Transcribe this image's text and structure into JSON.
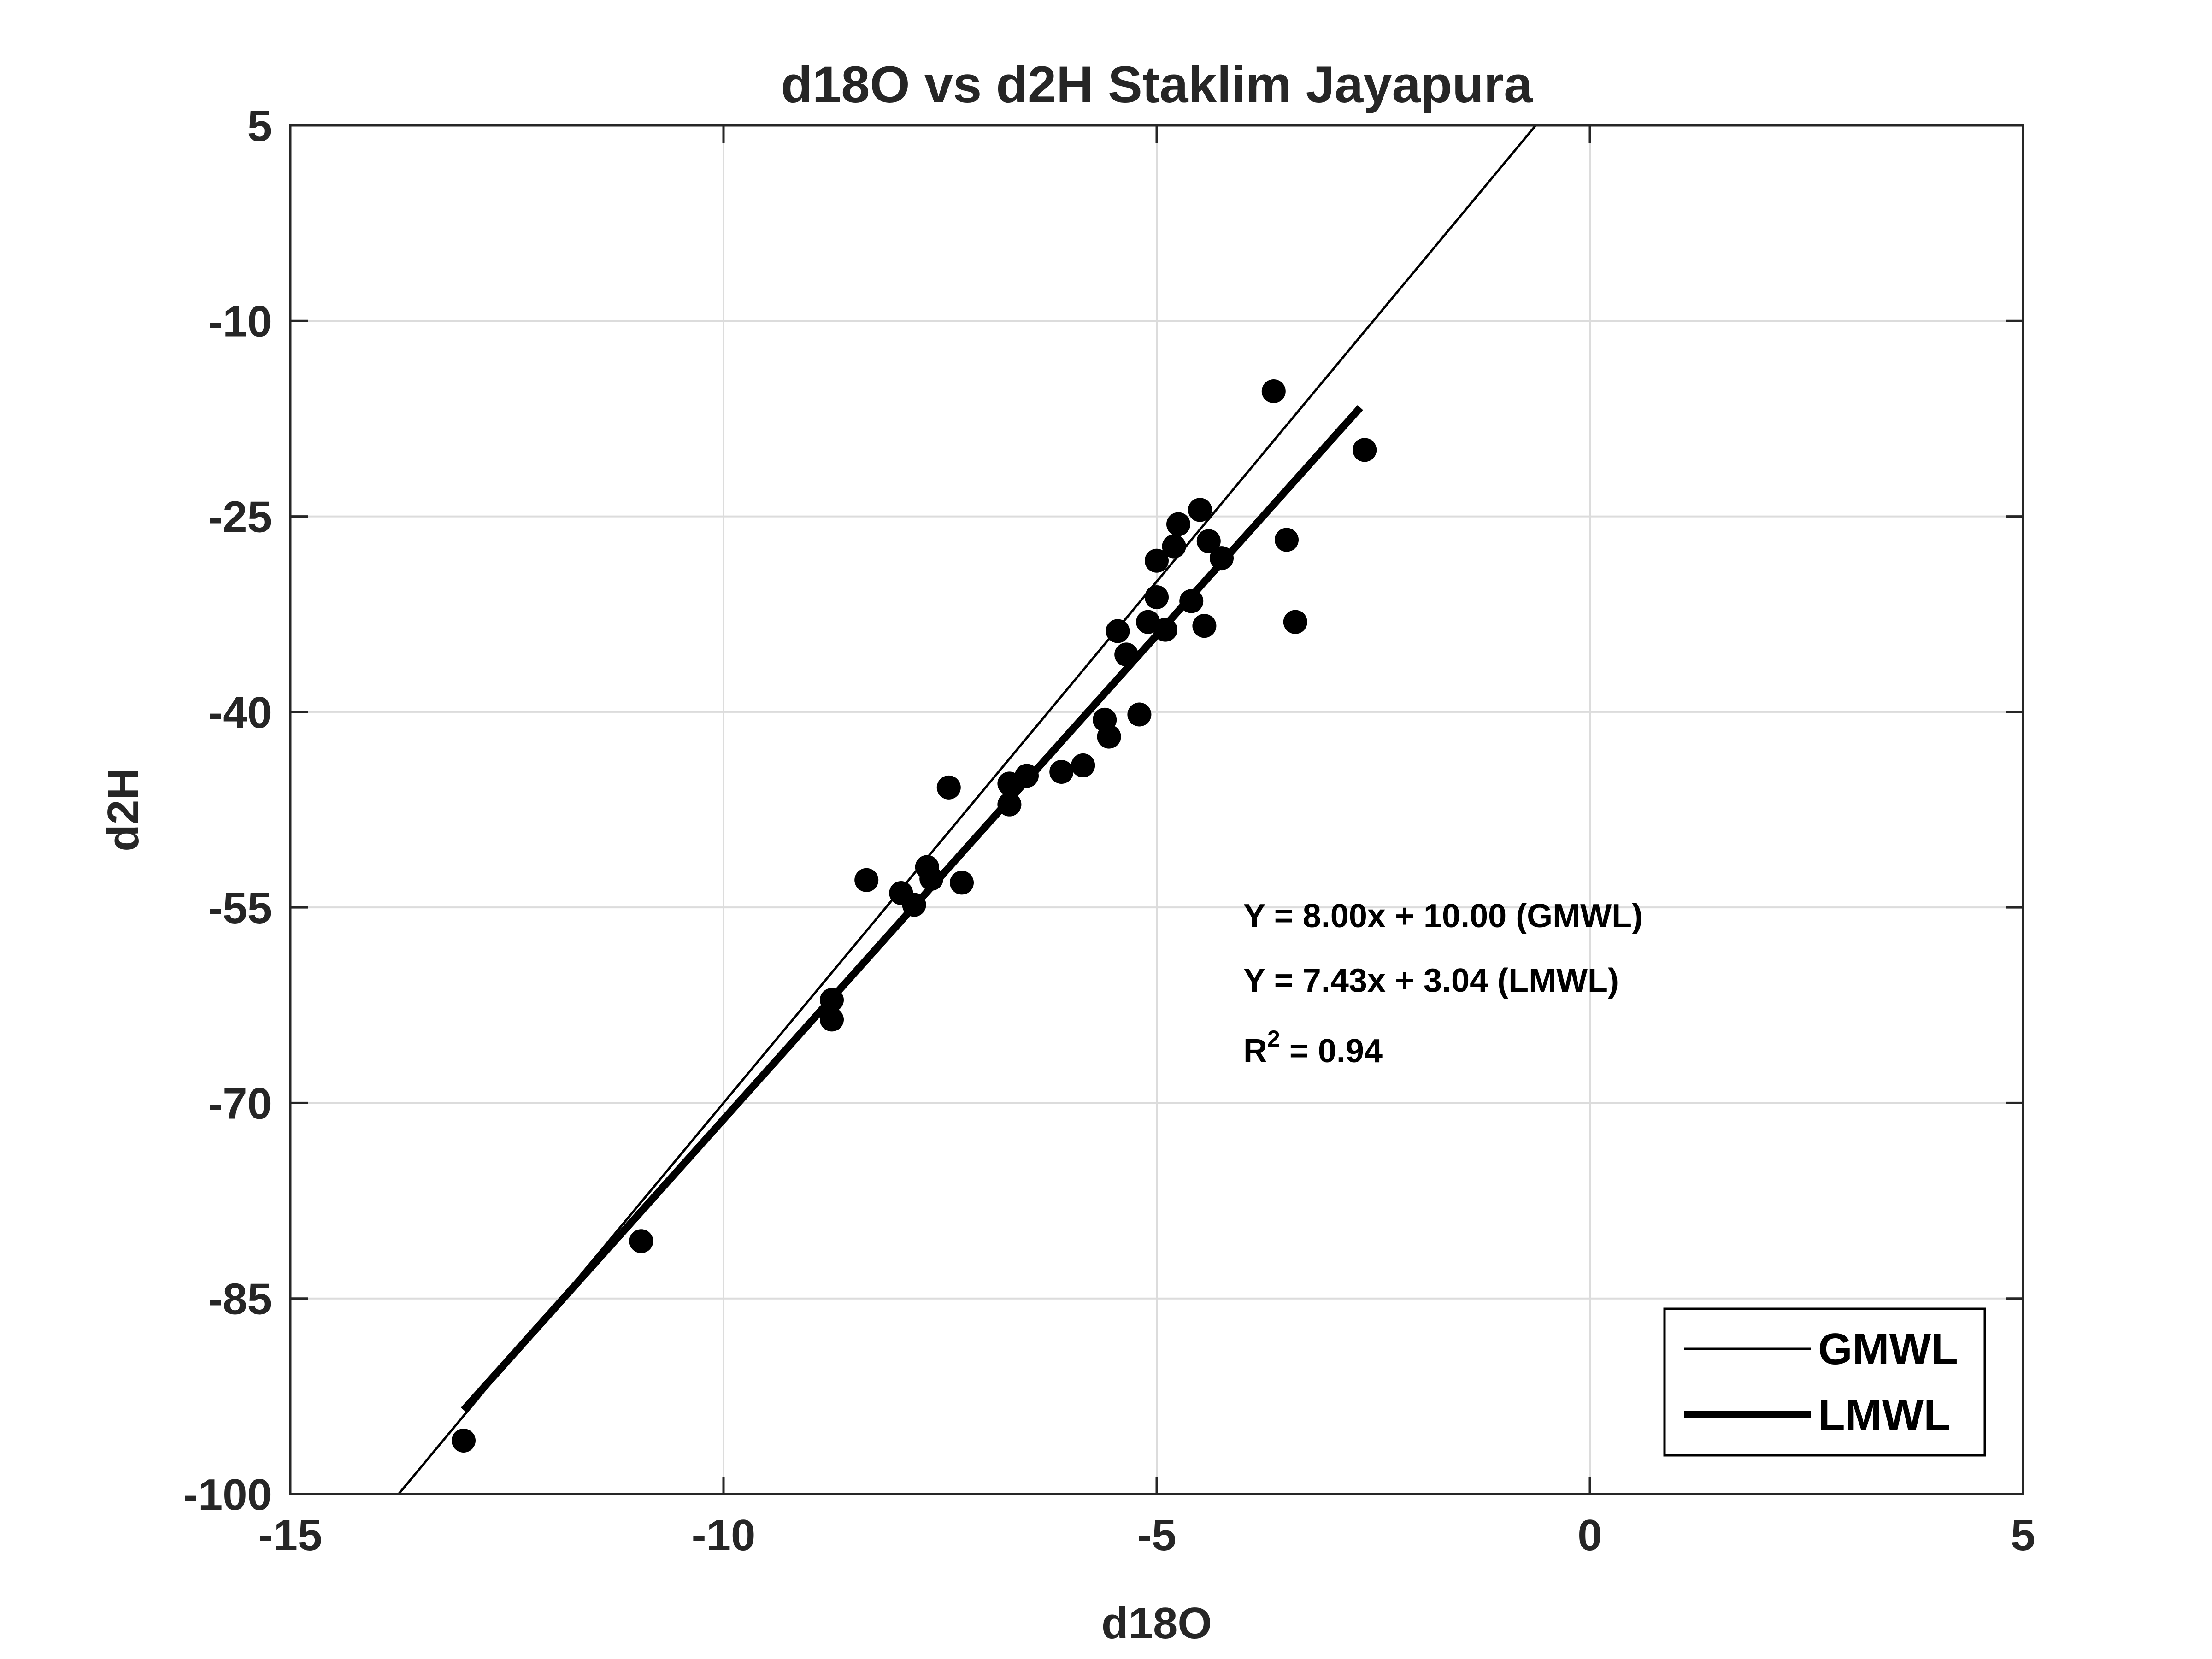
{
  "chart_data": {
    "type": "scatter",
    "title": "d18O vs d2H Staklim Jayapura",
    "xlabel": "d18O",
    "ylabel": "d2H",
    "xlim": [
      -15,
      5
    ],
    "ylim": [
      -100,
      5
    ],
    "xticks": [
      -15,
      -10,
      -5,
      0,
      5
    ],
    "yticks": [
      -100,
      -85,
      -70,
      -55,
      -40,
      -25,
      -10,
      5
    ],
    "grid": true,
    "colors": {
      "axes": "#262626",
      "grid": "#dcdcdc",
      "marker": "#000000",
      "line": "#000000"
    },
    "points": [
      [
        -13.0,
        -95.9
      ],
      [
        -10.95,
        -80.6
      ],
      [
        -8.75,
        -62.1
      ],
      [
        -8.75,
        -63.6
      ],
      [
        -8.35,
        -52.9
      ],
      [
        -7.95,
        -53.9
      ],
      [
        -7.8,
        -54.8
      ],
      [
        -7.65,
        -51.9
      ],
      [
        -7.6,
        -52.8
      ],
      [
        -7.4,
        -45.8
      ],
      [
        -7.25,
        -53.1
      ],
      [
        -6.7,
        -45.5
      ],
      [
        -6.7,
        -47.1
      ],
      [
        -6.5,
        -44.9
      ],
      [
        -6.1,
        -44.6
      ],
      [
        -5.85,
        -44.1
      ],
      [
        -5.6,
        -40.6
      ],
      [
        -5.55,
        -41.9
      ],
      [
        -5.45,
        -33.8
      ],
      [
        -5.35,
        -35.6
      ],
      [
        -5.2,
        -40.2
      ],
      [
        -5.1,
        -33.1
      ],
      [
        -5.0,
        -28.4
      ],
      [
        -5.0,
        -31.2
      ],
      [
        -4.9,
        -33.7
      ],
      [
        -4.8,
        -27.3
      ],
      [
        -4.75,
        -25.6
      ],
      [
        -4.6,
        -31.5
      ],
      [
        -4.5,
        -24.5
      ],
      [
        -4.45,
        -33.4
      ],
      [
        -4.4,
        -26.9
      ],
      [
        -4.25,
        -28.2
      ],
      [
        -3.65,
        -15.4
      ],
      [
        -3.5,
        -26.8
      ],
      [
        -3.4,
        -33.1
      ],
      [
        -2.6,
        -19.9
      ]
    ],
    "series": [
      {
        "name": "GMWL",
        "slope": 8.0,
        "intercept": 10.0,
        "x_range": [
          -13.75,
          -0.62
        ],
        "line_width": "thin"
      },
      {
        "name": "LMWL",
        "slope": 7.43,
        "intercept": 3.04,
        "x_range": [
          -13.0,
          -2.65
        ],
        "line_width": "thick"
      }
    ],
    "annotations": {
      "gmwl_eq": "Y = 8.00x + 10.00 (GMWL)",
      "lmwl_eq": "Y = 7.43x + 3.04 (LMWL)",
      "r2_prefix": "R",
      "r2_sup": "2",
      "r2_value": " = 0.94"
    },
    "legend": {
      "location": "bottom-right",
      "entries": [
        "GMWL",
        "LMWL"
      ]
    }
  }
}
